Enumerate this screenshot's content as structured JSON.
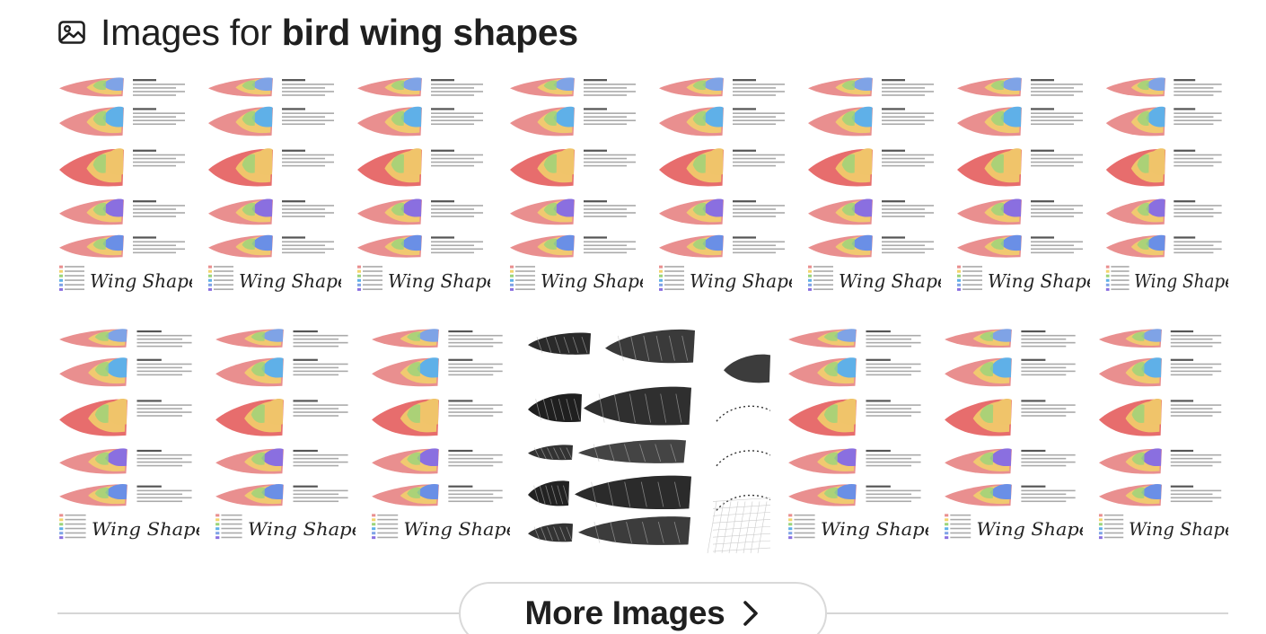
{
  "header": {
    "icon": "image-icon",
    "title_prefix": "Images for ",
    "query": "bird wing shapes"
  },
  "thumbnails": {
    "row1": [
      {
        "kind": "wing-chart",
        "caption": "Wing Shapes"
      },
      {
        "kind": "wing-chart",
        "caption": "Wing Shapes"
      },
      {
        "kind": "wing-chart",
        "caption": "Wing Shapes"
      },
      {
        "kind": "wing-chart",
        "caption": "Wing Shapes"
      },
      {
        "kind": "wing-chart",
        "caption": "Wing Shapes"
      },
      {
        "kind": "wing-chart",
        "caption": "Wing Shapes"
      },
      {
        "kind": "wing-chart",
        "caption": "Wing Shapes"
      },
      {
        "kind": "wing-chart",
        "caption": "Wing Shapes"
      }
    ],
    "row2": [
      {
        "kind": "wing-chart",
        "caption": "Wing Shapes"
      },
      {
        "kind": "wing-chart",
        "caption": "Wing Shapes"
      },
      {
        "kind": "wing-chart",
        "caption": "Wing Shapes"
      },
      {
        "kind": "wing-photo",
        "caption": ""
      },
      {
        "kind": "wing-chart",
        "caption": "Wing Shapes"
      },
      {
        "kind": "wing-chart",
        "caption": "Wing Shapes"
      },
      {
        "kind": "wing-chart",
        "caption": "Wing Shapes"
      }
    ]
  },
  "more_button": {
    "label": "More Images",
    "icon": "chevron-right-icon"
  }
}
